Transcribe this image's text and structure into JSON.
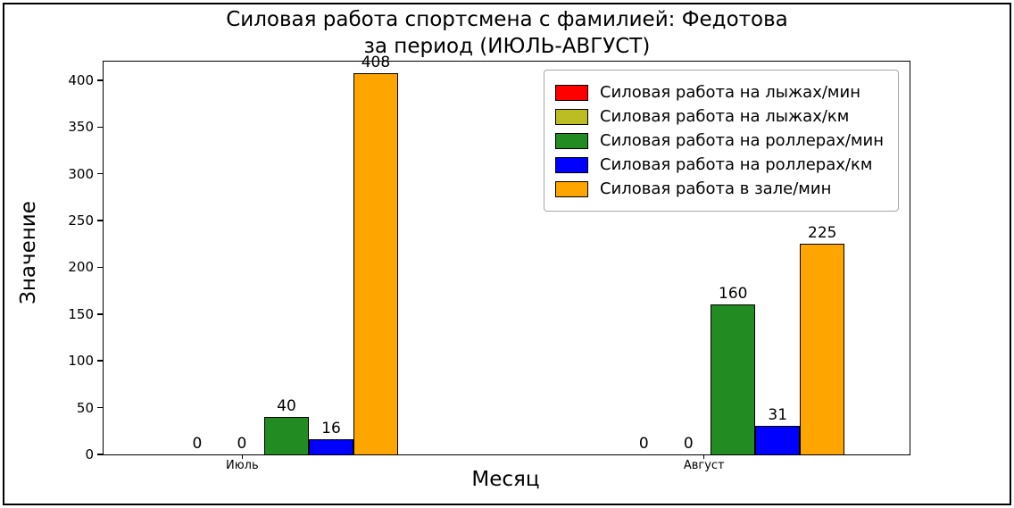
{
  "chart_data": {
    "type": "bar",
    "title": "Силовая работа спортсмена с фамилией: Федотова за период (ИЮЛЬ-АВГУСТ)",
    "title_lines": [
      "Силовая работа спортсмена с фамилией: Федотова",
      "за период (ИЮЛЬ-АВГУСТ)"
    ],
    "xlabel": "Месяц",
    "ylabel": "Значение",
    "categories": [
      "Июль",
      "Август"
    ],
    "series": [
      {
        "name": "Силовая работа на лыжах/мин",
        "color": "#ff0000",
        "values": [
          0,
          0
        ]
      },
      {
        "name": "Силовая работа на лыжах/км",
        "color": "#bcbd22",
        "values": [
          0,
          0
        ]
      },
      {
        "name": "Силовая работа на роллерах/мин",
        "color": "#228b22",
        "values": [
          40,
          160
        ]
      },
      {
        "name": "Силовая работа на роллерах/км",
        "color": "#0000ff",
        "values": [
          16,
          31
        ]
      },
      {
        "name": "Силовая работа в зале/мин",
        "color": "#ffa500",
        "values": [
          408,
          225
        ]
      }
    ],
    "yticks": [
      0,
      50,
      100,
      150,
      200,
      250,
      300,
      350,
      400
    ],
    "ylim": [
      0,
      420
    ],
    "grid": false,
    "legend_position": "upper right"
  }
}
